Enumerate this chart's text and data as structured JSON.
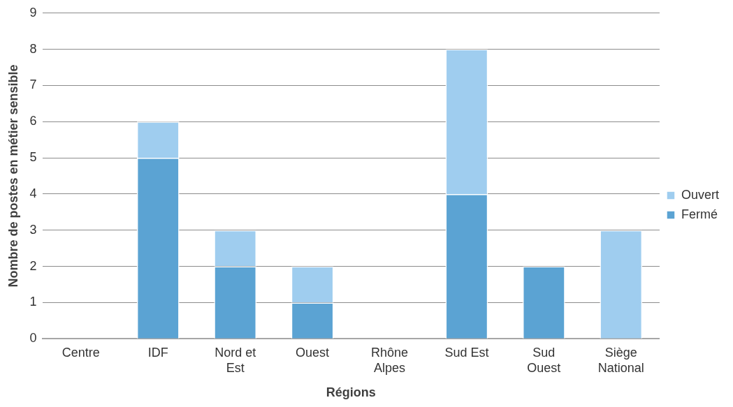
{
  "chart_data": {
    "type": "bar",
    "stacked": true,
    "xlabel": "Régions",
    "ylabel": "Nombre de postes en métier sensible",
    "categories": [
      "Centre",
      "IDF",
      "Nord et Est",
      "Ouest",
      "Rhône Alpes",
      "Sud Est",
      "Sud Ouest",
      "Siège National"
    ],
    "series": [
      {
        "name": "Fermé",
        "color": "#5ba3d3",
        "values": [
          0,
          5,
          2,
          1,
          0,
          4,
          2,
          0
        ]
      },
      {
        "name": "Ouvert",
        "color": "#9fcdef",
        "values": [
          0,
          1,
          1,
          1,
          0,
          4,
          0,
          3
        ]
      }
    ],
    "ylim": [
      0,
      9
    ],
    "yticks": [
      0,
      1,
      2,
      3,
      4,
      5,
      6,
      7,
      8,
      9
    ],
    "grid": "y",
    "legend": "right"
  }
}
